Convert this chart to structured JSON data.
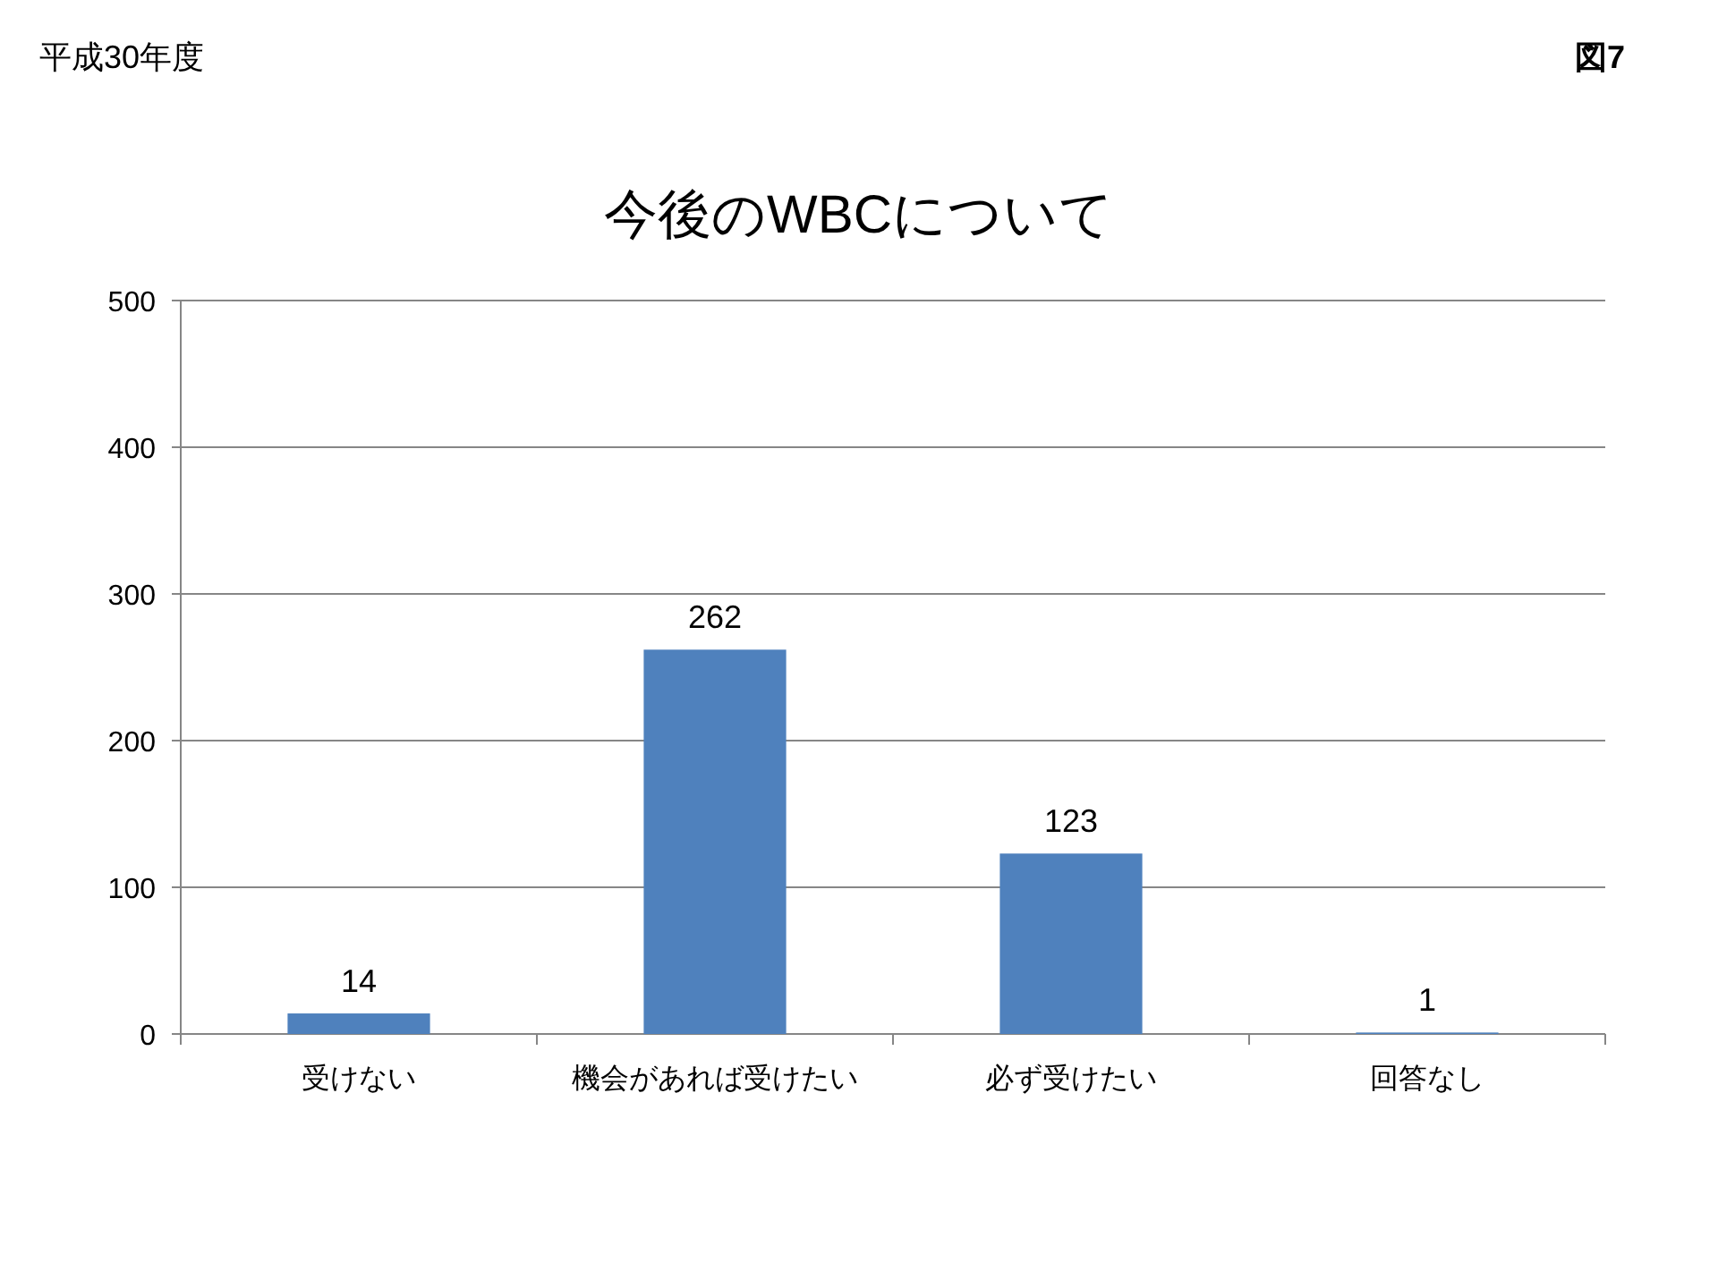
{
  "chart_data": {
    "type": "bar",
    "title": "今後のWBCについて",
    "categories": [
      "受けない",
      "機会があれば受けたい",
      "必ず受けたい",
      "回答なし"
    ],
    "values": [
      14,
      262,
      123,
      1
    ],
    "color": "#4f81bd",
    "ylim": [
      0,
      500
    ],
    "yticks": [
      0,
      100,
      200,
      300,
      400,
      500
    ],
    "grid": "y",
    "data_labels": true,
    "annotations": [
      "平成30年度",
      "図7"
    ]
  }
}
